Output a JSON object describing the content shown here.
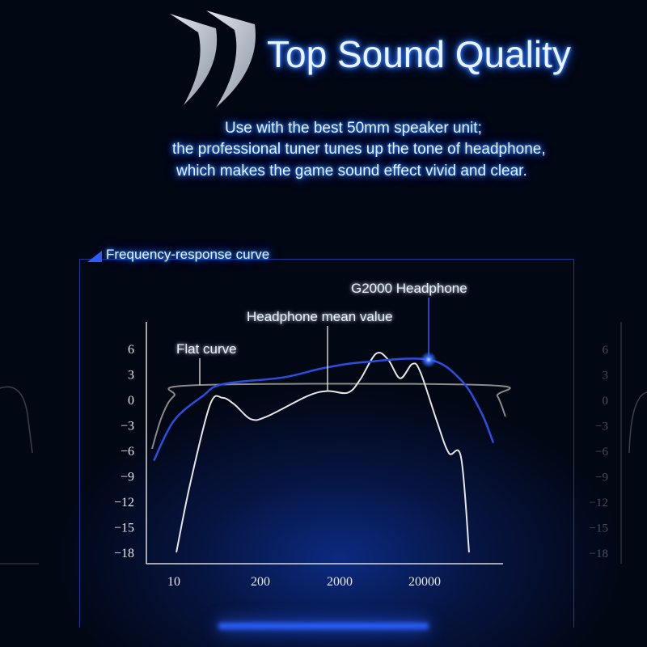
{
  "header": {
    "title": "Top Sound Quality",
    "logo_icon": "double-crescent-icon",
    "description": [
      "Use with the best 50mm speaker unit;",
      "the professional tuner tunes up the tone of headphone,",
      "which makes the game sound effect vivid and clear."
    ]
  },
  "colors": {
    "accent": "#2a5cff",
    "background": "#020714",
    "glow": "#3b8cff"
  },
  "chart_data": {
    "type": "line",
    "title": "Frequency-response curve",
    "xlabel": "",
    "ylabel": "",
    "x_scale": "log",
    "x_ticks": [
      "10",
      "200",
      "2000",
      "20000"
    ],
    "y_ticks": [
      "6",
      "3",
      "0",
      "−3",
      "−6",
      "−9",
      "−12",
      "−15",
      "−18"
    ],
    "ylim": [
      -18,
      6
    ],
    "grid": false,
    "series": [
      {
        "name": "Flat curve",
        "color": "#8a8a8a",
        "x": [
          4.7,
          6.6,
          10,
          23,
          103500,
          144000,
          179000
        ],
        "y": [
          -5.8,
          -2,
          0.4,
          1.7,
          1.7,
          0.4,
          -2
        ]
      },
      {
        "name": "Headphone mean value",
        "color": "#e6e6e6",
        "x": [
          10.9,
          17.5,
          35,
          54,
          82,
          143,
          241,
          781,
          1400,
          2490,
          3460,
          5360,
          7440,
          10300,
          14400,
          17900,
          27800,
          38600,
          53700,
          66800
        ],
        "y": [
          -18,
          -10,
          -0.6,
          0.2,
          -0.6,
          -2.3,
          -2,
          0.4,
          1.0,
          0.8,
          2.3,
          5.4,
          4.7,
          2.5,
          4.2,
          3.2,
          -2.5,
          -6.3,
          -6.8,
          -18
        ]
      },
      {
        "name": "G2000 Headphone",
        "color": "#2a4fe0",
        "x": [
          5,
          10,
          27,
          54,
          386,
          1250,
          3860,
          22300,
          53700,
          92700,
          129000
        ],
        "y": [
          -7.2,
          -2.5,
          0.4,
          1.8,
          2.6,
          3.7,
          4.4,
          4.7,
          2.3,
          -1.5,
          -5.1
        ]
      }
    ],
    "annotations": [
      {
        "text": "Flat curve",
        "series": "Flat curve",
        "x": 23
      },
      {
        "text": "Headphone mean value",
        "series": "Headphone mean value",
        "x": 1400
      },
      {
        "text": "G2000 Headphone",
        "series": "G2000 Headphone",
        "x": 22300
      }
    ],
    "side_ticks": [
      "6",
      "3",
      "0",
      "−3",
      "−6",
      "−9",
      "−12",
      "−15",
      "−18"
    ]
  }
}
